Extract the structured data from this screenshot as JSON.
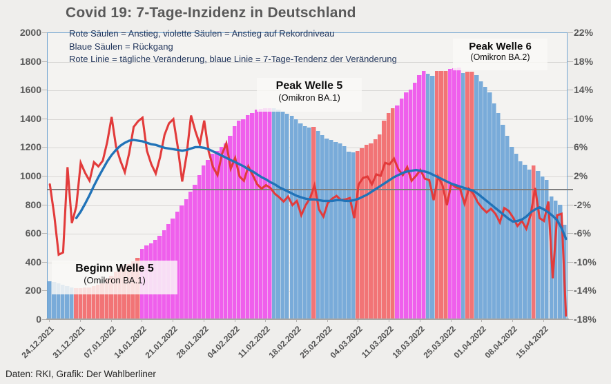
{
  "page": {
    "title": "Covid 19: 7-Tage-Inzidenz in Deutschland",
    "footer": "Daten: RKI, Grafik: Der Wahlberliner"
  },
  "legend": {
    "line1": "Rote Säulen = Anstieg, violette Säulen = Anstieg auf Rekordniveau",
    "line2": "Blaue Säulen = Rückgang",
    "line3": "Rote Linie = tägliche Veränderung, blaue Linie = 7-Tage-Tendenz der Veränderung"
  },
  "annotations": {
    "beginn_welle_5": {
      "title": "Beginn Welle 5",
      "subtitle": "(Omikron BA.1)"
    },
    "peak_welle_5": {
      "title": "Peak Welle 5",
      "subtitle": "(Omikron BA.1)"
    },
    "peak_welle_6": {
      "title": "Peak Welle 6",
      "subtitle": "(Omikron BA.2)"
    }
  },
  "colors": {
    "bar_increase": "#f27476",
    "bar_record_increase": "#ef5fec",
    "bar_decline": "#79abd9",
    "line_daily_change": "#e23b3b",
    "line_trend": "#2173b8",
    "zero_line": "#7f7f7f",
    "frame": "#6fa3d0",
    "axis_text": "#595959",
    "legend_text": "#22365c"
  },
  "chart_data": {
    "type": "bar",
    "subtype": "daily bars + two change lines (combo)",
    "title": "Covid 19: 7-Tage-Inzidenz in Deutschland",
    "start_date": "24.12.2021",
    "x_tick_labels": [
      "24.12.2021",
      "31.12.2021",
      "07.01.2022",
      "14.01.2022",
      "21.01.2022",
      "28.01.2022",
      "04.02.2022",
      "11.02.2022",
      "18.02.2022",
      "25.02.2022",
      "04.03.2022",
      "11.03.2022",
      "18.03.2022",
      "25.03.2022",
      "01.04.2022",
      "08.04.2022",
      "15.04.2022"
    ],
    "x_tick_interval_days": 7,
    "y_left_ticks": [
      "2000",
      "1800",
      "1600",
      "1400",
      "1200",
      "1000",
      "800",
      "600",
      "400",
      "200",
      "0"
    ],
    "y_left_range": [
      0,
      2000
    ],
    "y_right_ticks": [
      "22%",
      "18%",
      "14%",
      "10%",
      "6%",
      "2%",
      "-2%",
      "-6%",
      "-10%",
      "-14%",
      "-18%"
    ],
    "y_right_range": [
      -18,
      22
    ],
    "grid": true,
    "zero_reference_pct": 0,
    "bar_type_meaning": {
      "r": "Anstieg",
      "m": "Anstieg auf Rekordniveau",
      "b": "Rückgang"
    },
    "bar_types": "bbbbbbrrrrrrrrrrrrrrrmmmmmmmmmmmmmmmmmmmmmmmmmmmmmmbbbbbbbbbrbbbbbbbbbrrrrrrrrrmmmmmmmbbrrrmmmbrrbbbbbbbbbbbbbrbbbbbbb",
    "bars_incidence": [
      266,
      258,
      250,
      241,
      232,
      224,
      218,
      215,
      220,
      223,
      232,
      240,
      252,
      286,
      303,
      335,
      363,
      376,
      387,
      407,
      428,
      490,
      516,
      528,
      553,
      584,
      621,
      663,
      706,
      750,
      797,
      840,
      894,
      940,
      1006,
      1073,
      1113,
      1156,
      1176,
      1206,
      1228,
      1283,
      1350,
      1388,
      1400,
      1426,
      1441,
      1465,
      1470,
      1474,
      1476,
      1474,
      1466,
      1452,
      1438,
      1420,
      1400,
      1371,
      1350,
      1338,
      1346,
      1318,
      1288,
      1265,
      1253,
      1240,
      1228,
      1208,
      1172,
      1165,
      1175,
      1196,
      1220,
      1231,
      1259,
      1293,
      1389,
      1439,
      1474,
      1496,
      1543,
      1585,
      1607,
      1651,
      1706,
      1735,
      1714,
      1700,
      1733,
      1734,
      1735,
      1748,
      1756,
      1758,
      1722,
      1728,
      1730,
      1705,
      1663,
      1625,
      1586,
      1508,
      1440,
      1361,
      1280,
      1205,
      1158,
      1103,
      1080,
      1045,
      1075,
      1034,
      1000,
      975,
      856,
      827,
      800,
      661
    ],
    "red_line_daily_change_pct": [
      0.9,
      -3.4,
      -8.9,
      -8.6,
      3.3,
      -4.5,
      -2.2,
      3.9,
      2.5,
      1.4,
      4.0,
      3.4,
      4.2,
      6.8,
      10.3,
      6.2,
      4.2,
      2.6,
      5.3,
      8.9,
      9.7,
      10.2,
      5.6,
      3.7,
      2.4,
      4.7,
      7.8,
      9.4,
      10.0,
      6.1,
      1.3,
      5.0,
      10.5,
      8.3,
      6.5,
      9.8,
      5.5,
      3.3,
      2.2,
      5.1,
      6.6,
      3.1,
      4.6,
      2.0,
      1.4,
      3.4,
      2.2,
      0.9,
      0.3,
      0.8,
      0.4,
      -0.4,
      -0.9,
      -1.5,
      -0.8,
      -2.0,
      -1.4,
      -3.4,
      -2.0,
      -1.0,
      0.8,
      -2.6,
      -3.6,
      -1.7,
      -1.1,
      -0.7,
      -1.3,
      -1.2,
      -1.0,
      -3.8,
      0.9,
      1.8,
      2.0,
      0.9,
      2.3,
      2.1,
      3.9,
      3.7,
      4.5,
      3.0,
      2.2,
      3.3,
      1.4,
      2.1,
      2.9,
      1.7,
      1.5,
      -1.3,
      2.0,
      0.8,
      -2.0,
      1.0,
      0.5,
      0.3,
      -1.8,
      0.3,
      -0.4,
      -1.6,
      -2.4,
      -3.0,
      -2.5,
      -3.2,
      -4.4,
      -2.4,
      -2.8,
      -3.7,
      -4.9,
      -4.2,
      -5.3,
      -3.3,
      0.4,
      -3.8,
      -4.2,
      -1.5,
      -12.2,
      -3.4,
      -3.2,
      -17.4
    ],
    "blue_line_trend_pct": [
      null,
      null,
      null,
      null,
      null,
      null,
      -3.8,
      -2.9,
      -1.8,
      -0.6,
      0.7,
      1.9,
      3.0,
      4.1,
      5.0,
      5.7,
      6.3,
      6.7,
      7.0,
      7.1,
      7.0,
      6.9,
      6.7,
      6.5,
      6.4,
      6.2,
      6.0,
      5.9,
      5.8,
      5.7,
      5.6,
      5.7,
      5.9,
      6.1,
      6.1,
      6.0,
      5.8,
      5.5,
      5.2,
      4.9,
      4.6,
      4.3,
      4.0,
      3.7,
      3.4,
      3.0,
      2.7,
      2.3,
      1.9,
      1.6,
      1.2,
      0.9,
      0.5,
      0.2,
      -0.1,
      -0.4,
      -0.7,
      -0.9,
      -1.1,
      -1.2,
      -1.2,
      -1.3,
      -1.4,
      -1.4,
      -1.4,
      -1.3,
      -1.3,
      -1.4,
      -1.4,
      -1.3,
      -1.1,
      -0.8,
      -0.5,
      -0.1,
      0.3,
      0.7,
      1.1,
      1.5,
      1.9,
      2.2,
      2.5,
      2.7,
      2.8,
      2.9,
      2.8,
      2.7,
      2.5,
      2.2,
      1.9,
      1.6,
      1.3,
      1.0,
      0.8,
      0.6,
      0.4,
      0.2,
      0.0,
      -0.4,
      -0.9,
      -1.4,
      -1.9,
      -2.4,
      -2.9,
      -3.4,
      -3.9,
      -4.3,
      -4.2,
      -4.0,
      -3.6,
      -3.0,
      -2.6,
      -2.3,
      -2.6,
      -3.0,
      -3.5,
      -4.1,
      -5.2,
      -6.7
    ]
  }
}
